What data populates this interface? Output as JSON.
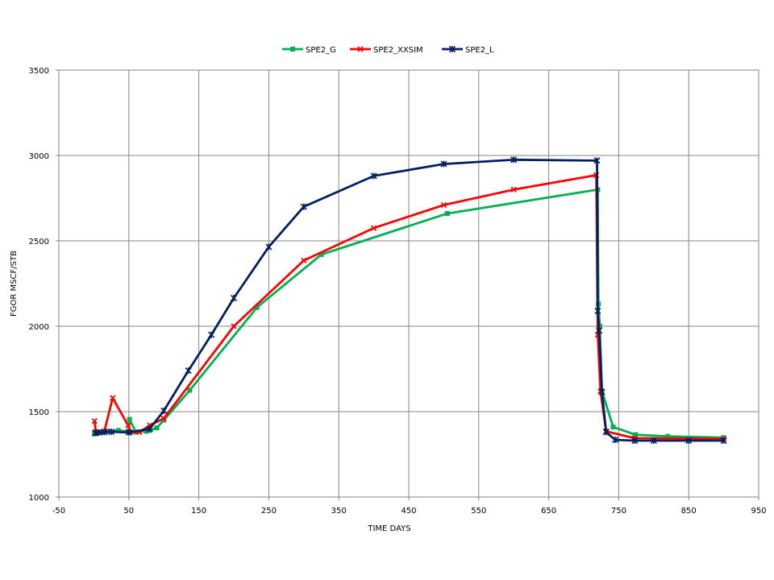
{
  "chart_data": {
    "type": "line",
    "title": "",
    "xlabel": "TIME  DAYS",
    "ylabel": "FGOR  MSCF/STB",
    "xlim": [
      -50,
      950
    ],
    "ylim": [
      1000,
      3500
    ],
    "x_ticks": [
      -50,
      50,
      150,
      250,
      350,
      450,
      550,
      650,
      750,
      850,
      950
    ],
    "y_ticks": [
      1000,
      1500,
      2000,
      2500,
      3000,
      3500
    ],
    "grid": true,
    "legend_position": "top-center",
    "series": [
      {
        "name": "SPE2_G",
        "color": "#00b050",
        "marker": "square",
        "x": [
          1,
          5,
          10,
          20,
          35,
          50,
          51,
          60,
          75,
          80,
          90,
          100,
          137,
          233,
          325,
          505,
          720,
          721,
          723,
          726,
          742,
          774,
          820,
          900
        ],
        "y": [
          1370,
          1375,
          1380,
          1385,
          1390,
          1385,
          1455,
          1380,
          1385,
          1390,
          1405,
          1450,
          1625,
          2110,
          2420,
          2660,
          2800,
          2130,
          2000,
          1620,
          1410,
          1365,
          1355,
          1348
        ]
      },
      {
        "name": "SPE2_XXSIM",
        "color": "#ff0000",
        "marker": "x",
        "x": [
          1,
          3,
          10,
          15,
          27,
          49,
          52,
          65,
          80,
          100,
          200,
          300,
          400,
          500,
          600,
          718,
          720,
          724,
          732,
          772,
          900
        ],
        "y": [
          1445,
          1380,
          1380,
          1385,
          1580,
          1420,
          1380,
          1380,
          1420,
          1460,
          2000,
          2385,
          2575,
          2710,
          2800,
          2885,
          1950,
          1620,
          1385,
          1345,
          1340
        ]
      },
      {
        "name": "SPE2_L",
        "color": "#002060",
        "marker": "star",
        "x": [
          2,
          7,
          15,
          25,
          50,
          80,
          100,
          135,
          168,
          200,
          250,
          300,
          400,
          500,
          600,
          719,
          720,
          722,
          726,
          732,
          745,
          773,
          800,
          850,
          900
        ],
        "y": [
          1375,
          1378,
          1380,
          1382,
          1378,
          1400,
          1505,
          1740,
          1950,
          2165,
          2465,
          2700,
          2880,
          2950,
          2975,
          2970,
          2090,
          1975,
          1615,
          1380,
          1335,
          1330,
          1330,
          1330,
          1330
        ]
      }
    ]
  }
}
